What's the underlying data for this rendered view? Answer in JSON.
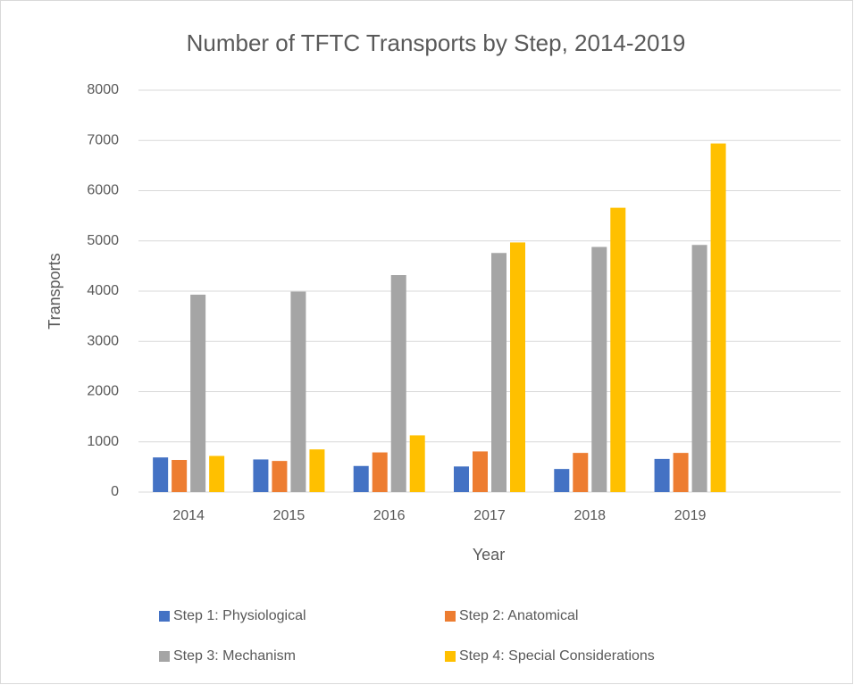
{
  "chart_data": {
    "type": "bar",
    "title": "Number of TFTC Transports by Step, 2014-2019",
    "x_label": "Year",
    "y_label": "Transports",
    "categories": [
      "2014",
      "2015",
      "2016",
      "2017",
      "2018",
      "2019",
      null
    ],
    "series": [
      {
        "name": "Step 1: Physiological",
        "color": "#4472c4",
        "values": [
          690,
          650,
          520,
          510,
          460,
          660,
          null
        ]
      },
      {
        "name": "Step 2: Anatomical",
        "color": "#ed7d31",
        "values": [
          640,
          620,
          790,
          810,
          780,
          780,
          null
        ]
      },
      {
        "name": "Step 3: Mechanism",
        "color": "#a5a5a5",
        "values": [
          3930,
          3990,
          4320,
          4760,
          4880,
          4920,
          null
        ]
      },
      {
        "name": "Step 4: Special Considerations",
        "color": "#ffc000",
        "values": [
          720,
          850,
          1130,
          4970,
          5660,
          6940,
          null
        ]
      }
    ],
    "ylim": [
      0,
      8000
    ],
    "yticks": [
      0,
      1000,
      2000,
      3000,
      4000,
      5000,
      6000,
      7000,
      8000
    ],
    "grid": true,
    "legend": "bottom"
  }
}
